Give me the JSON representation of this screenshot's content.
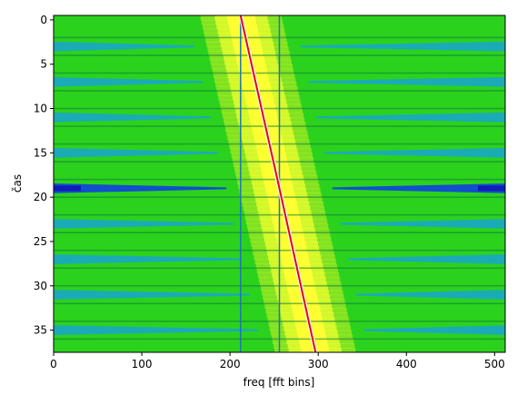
{
  "chart_data": {
    "type": "heatmap",
    "title": "",
    "xlabel": "freq [fft bins]",
    "ylabel": "čas",
    "xlim": [
      0,
      512
    ],
    "ylim": [
      37.5,
      -0.5
    ],
    "y_axis_inverted": true,
    "xticks": [
      0,
      100,
      200,
      300,
      400,
      500
    ],
    "yticks": [
      0,
      5,
      10,
      15,
      20,
      25,
      30,
      35
    ],
    "colormap": "green-yellow with blue/cyan low-intensity bands",
    "vertical_lines": [
      {
        "x": 212,
        "color": "#1f77b4"
      },
      {
        "x": 256,
        "color": "#1f77b4"
      }
    ],
    "trace": {
      "points": [
        {
          "x": 212,
          "y": -0.5
        },
        {
          "x": 256,
          "y": 19
        },
        {
          "x": 297,
          "y": 37.5
        }
      ],
      "color": "#e8001c"
    },
    "dark_band_rows": [
      3,
      7,
      11,
      15,
      19,
      23,
      27,
      31,
      35
    ],
    "colors": {
      "background_green": "#22c81e",
      "bright_green": "#3be61d",
      "yellow_center": "#ffff33",
      "cyan_band": "#1aa6c8",
      "blue_band": "#1040e0",
      "dark_line": "#0e7a3a",
      "vline": "#1f77b4",
      "trace": "#e8001c"
    }
  }
}
